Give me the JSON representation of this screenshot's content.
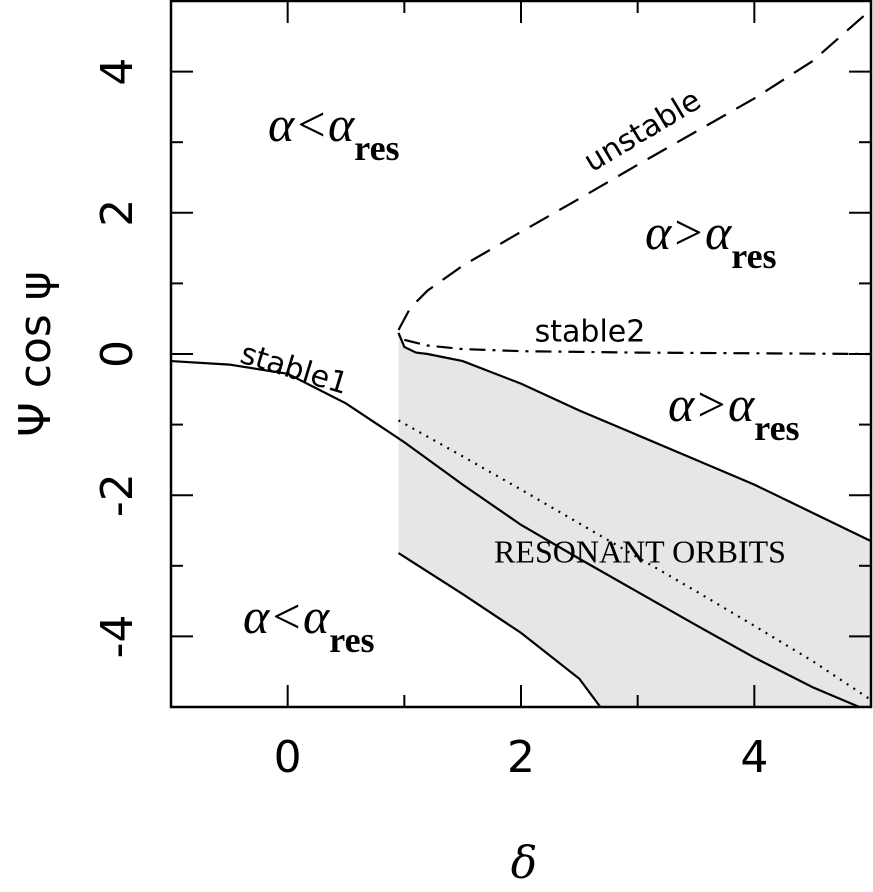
{
  "chart_data": {
    "type": "line",
    "xlabel": "δ",
    "ylabel": "Ψ cos ψ",
    "xlim": [
      -1,
      5
    ],
    "ylim": [
      -5,
      5
    ],
    "xticks": [
      0,
      2,
      4
    ],
    "yticks": [
      -4,
      -2,
      0,
      2,
      4
    ],
    "xminor": [
      1,
      3
    ],
    "yminor": [
      -3,
      -1,
      1,
      3
    ],
    "series": [
      {
        "name": "stable1",
        "color": "#000000",
        "style": "solid",
        "x": [
          -1,
          -0.5,
          0,
          0.5,
          1,
          1.5,
          2,
          2.5,
          3,
          3.5,
          4,
          4.5,
          4.9
        ],
        "values": [
          -0.1,
          -0.15,
          -0.28,
          -0.7,
          -1.25,
          -1.85,
          -2.42,
          -2.9,
          -3.37,
          -3.84,
          -4.3,
          -4.72,
          -5
        ]
      },
      {
        "name": "stable2",
        "color": "#000000",
        "style": "dashdot",
        "x": [
          1.0,
          1.2,
          1.5,
          2,
          3,
          4,
          5
        ],
        "values": [
          0.2,
          0.12,
          0.07,
          0.04,
          0.02,
          0.01,
          0
        ]
      },
      {
        "name": "unstable",
        "color": "#000000",
        "style": "dashed",
        "x": [
          0.95,
          1.05,
          1.2,
          1.5,
          2,
          2.5,
          3,
          3.5,
          4,
          4.5,
          5
        ],
        "values": [
          0.34,
          0.65,
          0.9,
          1.25,
          1.73,
          2.2,
          2.68,
          3.15,
          3.62,
          4.15,
          4.88
        ]
      },
      {
        "color": "#000000",
        "style": "solid",
        "x": [
          0.95,
          1.0,
          1.1,
          1.2,
          1.5,
          2,
          2.5,
          3,
          3.5,
          4,
          4.5,
          5
        ],
        "values": [
          0.3,
          0.1,
          0.02,
          0.0,
          -0.1,
          -0.42,
          -0.8,
          -1.15,
          -1.5,
          -1.85,
          -2.25,
          -2.65
        ]
      },
      {
        "color": "#000000",
        "style": "solid",
        "x": [
          0.95,
          1.5,
          2,
          2.5,
          2.68
        ],
        "values": [
          -2.82,
          -3.4,
          -3.95,
          -4.6,
          -5
        ]
      },
      {
        "color": "#000000",
        "style": "dotted",
        "x": [
          0.95,
          1.5,
          2,
          2.5,
          3,
          3.5,
          4,
          4.5,
          5
        ],
        "values": [
          -0.94,
          -1.45,
          -1.92,
          -2.4,
          -2.88,
          -3.36,
          -3.85,
          -4.35,
          -4.9
        ]
      }
    ],
    "shading": {
      "color": "#e6e6e6"
    },
    "annotations": [
      {
        "text": "α<α",
        "sub": "res"
      },
      {
        "text": "α>α",
        "sub": "res"
      },
      {
        "text": "α>α",
        "sub": "res"
      },
      {
        "text": "α<α",
        "sub": "res"
      },
      {
        "text": "RESONANT ORBITS"
      }
    ]
  }
}
